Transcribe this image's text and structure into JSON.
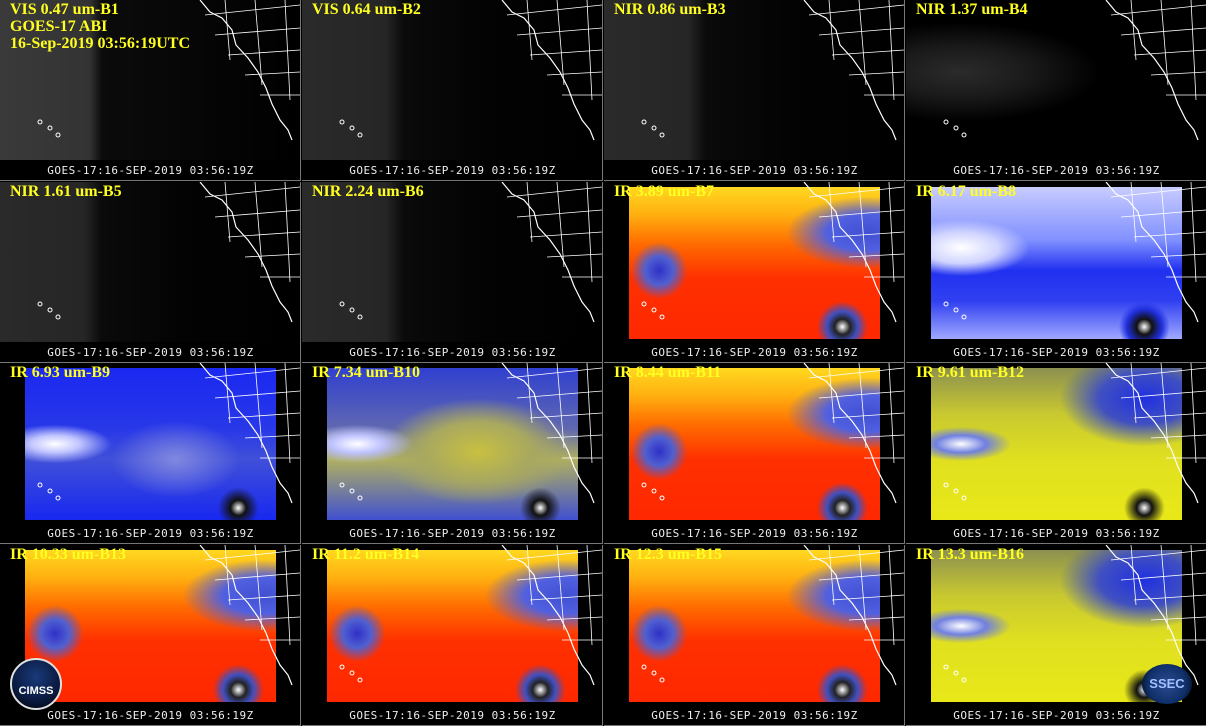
{
  "panels": [
    {
      "title": "VIS 0.47 um-B1",
      "subtitle": [
        "GOES-17 ABI",
        "16-Sep-2019 03:56:19UTC"
      ],
      "footer": "GOES-17:16-SEP-2019 03:56:19Z"
    },
    {
      "title": "VIS 0.64 um-B2",
      "footer": "GOES-17:16-SEP-2019 03:56:19Z"
    },
    {
      "title": "NIR 0.86 um-B3",
      "footer": "GOES-17:16-SEP-2019 03:56:19Z"
    },
    {
      "title": "NIR 1.37 um-B4",
      "footer": "GOES-17:16-SEP-2019 03:56:19Z"
    },
    {
      "title": "NIR 1.61 um-B5",
      "footer": "GOES-17:16-SEP-2019 03:56:19Z"
    },
    {
      "title": "NIR 2.24 um-B6",
      "footer": "GOES-17:16-SEP-2019 03:56:19Z"
    },
    {
      "title": "IR 3.89 um-B7",
      "footer": "GOES-17:16-SEP-2019 03:56:19Z"
    },
    {
      "title": "IR 6.17 um-B8",
      "footer": "GOES-17:16-SEP-2019 03:56:19Z"
    },
    {
      "title": "IR 6.93 um-B9",
      "footer": "GOES-17:16-SEP-2019 03:56:19Z"
    },
    {
      "title": "IR 7.34 um-B10",
      "footer": "GOES-17:16-SEP-2019 03:56:19Z"
    },
    {
      "title": "IR 8.44 um-B11",
      "footer": "GOES-17:16-SEP-2019 03:56:19Z"
    },
    {
      "title": "IR 9.61 um-B12",
      "footer": "GOES-17:16-SEP-2019 03:56:19Z"
    },
    {
      "title": "IR 10.33 um-B13",
      "footer": "GOES-17:16-SEP-2019 03:56:19Z"
    },
    {
      "title": "IR 11.2 um-B14",
      "footer": "GOES-17:16-SEP-2019 03:56:19Z"
    },
    {
      "title": "IR 12.3 um-B15",
      "footer": "GOES-17:16-SEP-2019 03:56:19Z"
    },
    {
      "title": "IR 13.3 um-B16",
      "footer": "GOES-17:16-SEP-2019 03:56:19Z"
    }
  ],
  "logos": {
    "left": "CIMSS",
    "right": "SSEC"
  }
}
